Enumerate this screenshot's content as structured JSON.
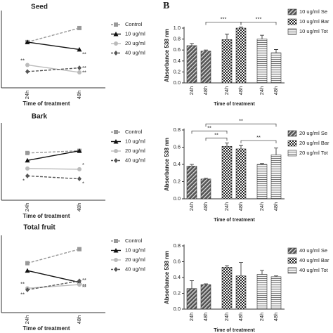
{
  "figure": {
    "panel_label": "B"
  },
  "chart_data": [
    {
      "type": "line",
      "title": "Seed",
      "xlabel": "Time of treatment",
      "categories": [
        "24h",
        "48h"
      ],
      "ylim": [
        0,
        1
      ],
      "series": [
        {
          "name": "Control",
          "color": "#999999",
          "marker": "square",
          "dashed": true,
          "values": [
            0.62,
            0.81
          ],
          "significance": [
            null,
            null
          ]
        },
        {
          "name": "10 ug/ml",
          "color": "#111111",
          "marker": "triangle",
          "dashed": false,
          "values": [
            0.62,
            0.52
          ],
          "significance": [
            null,
            "**"
          ]
        },
        {
          "name": "20 ug/ml",
          "color": "#bbbbbb",
          "marker": "circle",
          "dashed": false,
          "values": [
            0.31,
            0.21
          ],
          "significance": [
            "**",
            "**"
          ]
        },
        {
          "name": "40 ug/ml",
          "color": "#555555",
          "marker": "diamond",
          "dashed": true,
          "values": [
            0.22,
            0.27
          ],
          "significance": [
            null,
            "**"
          ]
        }
      ]
    },
    {
      "type": "line",
      "title": "Bark",
      "xlabel": "Time of treatment",
      "categories": [
        "24h",
        "48h"
      ],
      "ylim": [
        0,
        1
      ],
      "series": [
        {
          "name": "Control",
          "color": "#999999",
          "marker": "square",
          "dashed": true,
          "values": [
            0.64,
            0.67
          ],
          "significance": [
            null,
            null
          ]
        },
        {
          "name": "10 ug/ml",
          "color": "#111111",
          "marker": "triangle",
          "dashed": false,
          "values": [
            0.54,
            0.67
          ],
          "significance": [
            null,
            null
          ]
        },
        {
          "name": "20 ug/ml",
          "color": "#bbbbbb",
          "marker": "circle",
          "dashed": false,
          "values": [
            0.43,
            0.42
          ],
          "significance": [
            null,
            "*"
          ]
        },
        {
          "name": "40 ug/ml",
          "color": "#555555",
          "marker": "diamond",
          "dashed": true,
          "values": [
            0.33,
            0.29
          ],
          "significance": [
            "*",
            "*"
          ]
        }
      ]
    },
    {
      "type": "line",
      "title": "Total fruit",
      "xlabel": "Time of treatment",
      "categories": [
        "24h",
        "48h"
      ],
      "ylim": [
        0,
        1
      ],
      "series": [
        {
          "name": "Control",
          "color": "#999999",
          "marker": "square",
          "dashed": true,
          "values": [
            0.67,
            0.86
          ],
          "significance": [
            null,
            null
          ]
        },
        {
          "name": "10 ug/ml",
          "color": "#111111",
          "marker": "triangle",
          "dashed": false,
          "values": [
            0.57,
            0.41
          ],
          "significance": [
            null,
            "**"
          ]
        },
        {
          "name": "20 ug/ml",
          "color": "#bbbbbb",
          "marker": "circle",
          "dashed": false,
          "values": [
            0.33,
            0.38
          ],
          "significance": [
            "**",
            "**"
          ]
        },
        {
          "name": "40 ug/ml",
          "color": "#555555",
          "marker": "diamond",
          "dashed": true,
          "values": [
            0.31,
            0.43
          ],
          "significance": [
            "**",
            "**"
          ]
        }
      ]
    },
    {
      "type": "bar",
      "ylabel": "Absorbance 538 nm",
      "xlabel": "Time of treatment",
      "categories": [
        "24h",
        "48h"
      ],
      "ylim": [
        0,
        1
      ],
      "yticks": [
        {
          "value": 0,
          "label": "0.0"
        },
        {
          "value": 0.2,
          "label": "0.2"
        },
        {
          "value": 0.4,
          "label": "0.4"
        },
        {
          "value": 0.6,
          "label": "0.6"
        },
        {
          "value": 0.8,
          "label": "0.8"
        },
        {
          "value": 1,
          "label": "1.0"
        }
      ],
      "series": [
        {
          "name": "10 ug/ml Se",
          "pattern": "diagonal",
          "values": [
            0.68,
            0.58
          ],
          "errors": [
            0.04,
            0.02
          ]
        },
        {
          "name": "10 ug/ml Bar",
          "pattern": "checker",
          "values": [
            0.79,
            1.0
          ],
          "errors": [
            0.1,
            0.02
          ]
        },
        {
          "name": "10 ug/ml Tot",
          "pattern": "horizontal",
          "values": [
            0.8,
            0.55
          ],
          "errors": [
            0.07,
            0.06
          ]
        }
      ],
      "comparisons": [
        {
          "from": [
            0,
            1
          ],
          "to": [
            1,
            1
          ],
          "label": "***"
        },
        {
          "from": [
            1,
            1
          ],
          "to": [
            2,
            1
          ],
          "label": "***"
        }
      ]
    },
    {
      "type": "bar",
      "ylabel": "Absorbance 538 nm",
      "xlabel": "Time of treatment",
      "categories": [
        "24h",
        "48h"
      ],
      "ylim": [
        0,
        0.8
      ],
      "yticks": [
        {
          "value": 0,
          "label": "0.0"
        },
        {
          "value": 0.2,
          "label": "0.2"
        },
        {
          "value": 0.4,
          "label": "0.4"
        },
        {
          "value": 0.6,
          "label": "0.6"
        },
        {
          "value": 0.8,
          "label": "0.8"
        }
      ],
      "series": [
        {
          "name": "20 ug/ml Se",
          "pattern": "diagonal",
          "values": [
            0.38,
            0.23
          ],
          "errors": [
            0.02,
            0.01
          ]
        },
        {
          "name": "20 ug/ml Bar",
          "pattern": "checker",
          "values": [
            0.61,
            0.58
          ],
          "errors": [
            0.04,
            0.04
          ]
        },
        {
          "name": "20 ug/ml Tot",
          "pattern": "horizontal",
          "values": [
            0.4,
            0.51
          ],
          "errors": [
            0.01,
            0.08
          ]
        }
      ],
      "comparisons": [
        {
          "from": [
            0,
            0
          ],
          "to": [
            1,
            0
          ],
          "label": "**"
        },
        {
          "from": [
            0,
            1
          ],
          "to": [
            1,
            0
          ],
          "label": "**"
        },
        {
          "from": [
            1,
            1
          ],
          "to": [
            2,
            1
          ],
          "label": "**"
        },
        {
          "from": [
            0,
            1
          ],
          "to": [
            2,
            1
          ],
          "label": "**"
        }
      ]
    },
    {
      "type": "bar",
      "ylabel": "Absorbance 538 nm",
      "xlabel": "Time of treatment",
      "categories": [
        "24h",
        "48h"
      ],
      "ylim": [
        0,
        0.8
      ],
      "yticks": [
        {
          "value": 0,
          "label": "0.0"
        },
        {
          "value": 0.2,
          "label": "0.2"
        },
        {
          "value": 0.4,
          "label": "0.4"
        },
        {
          "value": 0.6,
          "label": "0.6"
        },
        {
          "value": 0.8,
          "label": "0.8"
        }
      ],
      "series": [
        {
          "name": "40 ug/ml Se",
          "pattern": "diagonal",
          "values": [
            0.26,
            0.31
          ],
          "errors": [
            0.1,
            0.01
          ]
        },
        {
          "name": "40 ug/ml Bar",
          "pattern": "checker",
          "values": [
            0.53,
            0.42
          ],
          "errors": [
            0.02,
            0.17
          ]
        },
        {
          "name": "40 ug/ml Tot",
          "pattern": "horizontal",
          "values": [
            0.44,
            0.41
          ],
          "errors": [
            0.05,
            0.01
          ]
        }
      ],
      "comparisons": []
    }
  ]
}
